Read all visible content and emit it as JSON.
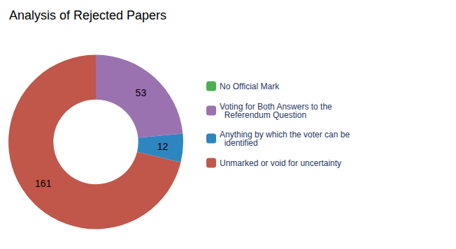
{
  "chart_data": {
    "type": "pie",
    "title": "Analysis of Rejected Papers",
    "categories": [
      "No Official Mark",
      "Voting for Both Answers to the\n  Referendum Question",
      "Anything by which the voter can be\n  identified",
      "Unmarked or void for uncertainty"
    ],
    "values": [
      0.001,
      53,
      12,
      161
    ],
    "value_labels": [
      null,
      "53",
      "12",
      "161"
    ],
    "colors": [
      "#4CAF50",
      "#9B72B0",
      "#2E86C1",
      "#C0574A"
    ],
    "legend": "right"
  }
}
